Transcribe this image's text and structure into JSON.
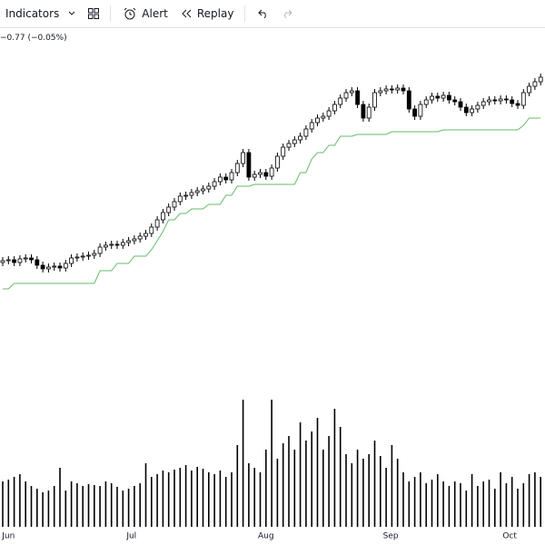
{
  "toolbar": {
    "indicators": "Indicators",
    "alert": "Alert",
    "replay": "Replay"
  },
  "legend_text": "−0.77 (−0.05%)",
  "chart_data": {
    "type": "candlestick",
    "ylim": [
      0,
      380
    ],
    "vlim": [
      0,
      160
    ],
    "xticks": [
      {
        "value": 1,
        "label": "Jun"
      },
      {
        "value": 22.5,
        "label": "Jul"
      },
      {
        "value": 46,
        "label": "Aug"
      },
      {
        "value": 67.8,
        "label": "Sep"
      },
      {
        "value": 88.6,
        "label": "Oct"
      }
    ],
    "up_color": "#ffffff",
    "down_color": "#000000",
    "stop_color": "#66bb6a",
    "volume_color": "#000000",
    "open": [
      131,
      133,
      134,
      131,
      135,
      136,
      134,
      128,
      124,
      126,
      127,
      125,
      130,
      136,
      137,
      138,
      139,
      141,
      148,
      150,
      151,
      150,
      153,
      155,
      157,
      160,
      163,
      170,
      178,
      186,
      192,
      198,
      204,
      205,
      208,
      210,
      212,
      215,
      220,
      225,
      222,
      230,
      240,
      252,
      225,
      228,
      230,
      226,
      235,
      248,
      258,
      262,
      266,
      270,
      278,
      285,
      290,
      292,
      298,
      305,
      312,
      318,
      320,
      305,
      290,
      302,
      318,
      320,
      322,
      321,
      323,
      320,
      300,
      292,
      305,
      310,
      314,
      312,
      315,
      310,
      308,
      302,
      296,
      300,
      304,
      308,
      310,
      309,
      311,
      310,
      306,
      304,
      318,
      325,
      330
    ],
    "high": [
      137,
      138,
      138,
      139,
      140,
      140,
      138,
      132,
      130,
      131,
      131,
      134,
      140,
      141,
      142,
      143,
      145,
      152,
      154,
      155,
      155,
      157,
      159,
      161,
      164,
      167,
      174,
      182,
      190,
      196,
      202,
      208,
      209,
      212,
      214,
      216,
      219,
      224,
      229,
      229,
      234,
      244,
      256,
      256,
      232,
      234,
      234,
      239,
      252,
      262,
      266,
      270,
      274,
      282,
      289,
      294,
      296,
      302,
      309,
      316,
      322,
      324,
      324,
      309,
      306,
      322,
      324,
      326,
      326,
      327,
      327,
      324,
      304,
      309,
      314,
      318,
      318,
      319,
      319,
      314,
      312,
      306,
      304,
      308,
      312,
      314,
      314,
      315,
      315,
      314,
      310,
      322,
      329,
      334,
      339
    ],
    "low": [
      127,
      129,
      127,
      127,
      131,
      130,
      124,
      120,
      120,
      122,
      121,
      121,
      126,
      132,
      133,
      134,
      135,
      137,
      144,
      146,
      146,
      146,
      149,
      151,
      153,
      156,
      159,
      166,
      174,
      182,
      188,
      194,
      200,
      201,
      204,
      206,
      208,
      211,
      216,
      218,
      218,
      226,
      236,
      221,
      221,
      224,
      222,
      222,
      231,
      244,
      254,
      258,
      262,
      266,
      274,
      281,
      286,
      288,
      294,
      301,
      308,
      314,
      301,
      286,
      286,
      298,
      314,
      316,
      317,
      317,
      316,
      296,
      288,
      288,
      301,
      306,
      308,
      308,
      306,
      304,
      298,
      292,
      292,
      296,
      300,
      304,
      305,
      305,
      306,
      302,
      300,
      300,
      314,
      321,
      326
    ],
    "close": [
      133,
      134,
      131,
      135,
      136,
      134,
      128,
      124,
      126,
      127,
      125,
      130,
      136,
      137,
      138,
      139,
      141,
      148,
      150,
      151,
      150,
      153,
      155,
      157,
      160,
      163,
      170,
      178,
      186,
      192,
      198,
      204,
      205,
      208,
      210,
      212,
      215,
      220,
      225,
      222,
      230,
      240,
      252,
      225,
      228,
      230,
      226,
      235,
      248,
      258,
      262,
      266,
      270,
      278,
      285,
      290,
      292,
      298,
      305,
      312,
      318,
      320,
      305,
      290,
      302,
      318,
      320,
      322,
      321,
      323,
      320,
      300,
      292,
      305,
      310,
      314,
      312,
      315,
      310,
      308,
      302,
      296,
      300,
      304,
      308,
      310,
      309,
      311,
      310,
      306,
      304,
      318,
      325,
      330,
      335
    ],
    "stop": [
      102,
      102,
      108,
      108,
      108,
      108,
      108,
      108,
      108,
      108,
      108,
      108,
      108,
      108,
      108,
      108,
      108,
      122,
      122,
      122,
      130,
      130,
      130,
      138,
      138,
      138,
      145,
      155,
      165,
      178,
      178,
      185,
      185,
      190,
      190,
      190,
      195,
      195,
      195,
      205,
      205,
      215,
      215,
      215,
      217,
      217,
      217,
      217,
      217,
      217,
      217,
      217,
      230,
      230,
      245,
      252,
      252,
      260,
      260,
      270,
      270,
      270,
      272,
      272,
      272,
      272,
      272,
      272,
      275,
      275,
      275,
      275,
      275,
      275,
      275,
      275,
      275,
      277,
      277,
      277,
      277,
      277,
      277,
      277,
      277,
      277,
      277,
      277,
      277,
      277,
      277,
      282,
      290,
      290,
      290
    ],
    "volume": [
      50,
      52,
      55,
      58,
      50,
      45,
      42,
      38,
      40,
      45,
      65,
      40,
      50,
      48,
      45,
      47,
      46,
      45,
      50,
      48,
      44,
      40,
      42,
      45,
      48,
      70,
      55,
      58,
      62,
      60,
      63,
      65,
      68,
      62,
      66,
      64,
      60,
      58,
      62,
      55,
      60,
      90,
      140,
      70,
      65,
      60,
      85,
      140,
      75,
      92,
      100,
      85,
      115,
      95,
      105,
      120,
      85,
      100,
      130,
      110,
      80,
      70,
      85,
      75,
      80,
      95,
      78,
      65,
      90,
      75,
      60,
      50,
      55,
      60,
      48,
      52,
      58,
      50,
      45,
      50,
      48,
      40,
      58,
      45,
      50,
      52,
      42,
      60,
      48,
      55,
      42,
      48,
      58,
      60,
      55
    ]
  }
}
